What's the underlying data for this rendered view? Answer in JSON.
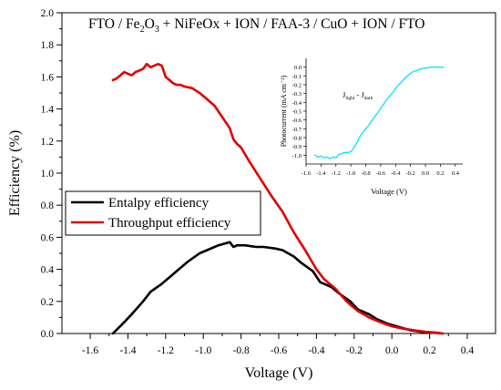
{
  "chart_data": [
    {
      "type": "line",
      "title_parts": [
        "FTO / Fe",
        "2",
        "O",
        "3",
        " + NiFeOx + ION / FAA-3 / CuO + ION / FTO"
      ],
      "xlabel": "Voltage (V)",
      "ylabel": "Efficiency (%)",
      "xlim": [
        -1.75,
        0.55
      ],
      "ylim": [
        0.0,
        2.0
      ],
      "x_ticks": [
        -1.6,
        -1.4,
        -1.2,
        -1.0,
        -0.8,
        -0.6,
        -0.4,
        -0.2,
        0.0,
        0.2,
        0.4
      ],
      "x_tick_labels": [
        "-1.6",
        "-1.4",
        "-1.2",
        "-1.0",
        "-0.8",
        "-0.6",
        "-0.4",
        "-0.2",
        "0.0",
        "0.2",
        "0.4"
      ],
      "y_ticks": [
        0.0,
        0.2,
        0.4,
        0.6,
        0.8,
        1.0,
        1.2,
        1.4,
        1.6,
        1.8,
        2.0
      ],
      "y_tick_labels": [
        "0.0",
        "0.2",
        "0.4",
        "0.6",
        "0.8",
        "1.0",
        "1.2",
        "1.4",
        "1.6",
        "1.8",
        "2.0"
      ],
      "legend_position": "middle-left",
      "grid": false,
      "series": [
        {
          "name": "Entalpy efficiency",
          "color": "#000000",
          "x": [
            -1.48,
            -1.42,
            -1.38,
            -1.32,
            -1.28,
            -1.22,
            -1.18,
            -1.12,
            -1.08,
            -1.02,
            -0.98,
            -0.92,
            -0.86,
            -0.84,
            -0.82,
            -0.78,
            -0.72,
            -0.68,
            -0.62,
            -0.58,
            -0.52,
            -0.48,
            -0.42,
            -0.38,
            -0.32,
            -0.28,
            -0.22,
            -0.18,
            -0.12,
            -0.08,
            -0.02,
            0.04,
            0.1,
            0.16,
            0.22,
            0.27
          ],
          "values": [
            0.0,
            0.07,
            0.12,
            0.2,
            0.26,
            0.31,
            0.35,
            0.41,
            0.45,
            0.5,
            0.52,
            0.55,
            0.57,
            0.54,
            0.55,
            0.55,
            0.54,
            0.54,
            0.53,
            0.52,
            0.48,
            0.44,
            0.39,
            0.32,
            0.29,
            0.25,
            0.2,
            0.15,
            0.12,
            0.09,
            0.06,
            0.04,
            0.02,
            0.01,
            0.005,
            0.0
          ]
        },
        {
          "name": "Throughput efficiency",
          "color": "#e00000",
          "x": [
            -1.48,
            -1.46,
            -1.44,
            -1.42,
            -1.4,
            -1.38,
            -1.36,
            -1.34,
            -1.32,
            -1.3,
            -1.28,
            -1.26,
            -1.24,
            -1.22,
            -1.2,
            -1.18,
            -1.16,
            -1.14,
            -1.12,
            -1.1,
            -1.06,
            -1.02,
            -0.98,
            -0.94,
            -0.9,
            -0.86,
            -0.84,
            -0.82,
            -0.8,
            -0.76,
            -0.7,
            -0.64,
            -0.58,
            -0.52,
            -0.46,
            -0.4,
            -0.36,
            -0.3,
            -0.24,
            -0.18,
            -0.12,
            -0.06,
            0.0,
            0.06,
            0.12,
            0.18,
            0.24,
            0.27
          ],
          "values": [
            1.58,
            1.59,
            1.61,
            1.63,
            1.62,
            1.61,
            1.63,
            1.64,
            1.65,
            1.68,
            1.66,
            1.67,
            1.68,
            1.67,
            1.6,
            1.58,
            1.56,
            1.55,
            1.55,
            1.54,
            1.53,
            1.5,
            1.46,
            1.42,
            1.35,
            1.28,
            1.21,
            1.18,
            1.16,
            1.08,
            0.97,
            0.86,
            0.76,
            0.63,
            0.52,
            0.4,
            0.34,
            0.28,
            0.2,
            0.14,
            0.1,
            0.07,
            0.045,
            0.03,
            0.02,
            0.01,
            0.005,
            0.0
          ]
        }
      ]
    },
    {
      "type": "line",
      "xlabel": "Voltage (V)",
      "ylabel": "Photocurrent (mA cm⁻²)",
      "annotation_parts": [
        "J",
        "light",
        " - J",
        "dark"
      ],
      "xlim": [
        -1.6,
        0.5
      ],
      "ylim": [
        -1.1,
        0.1
      ],
      "x_ticks": [
        -1.6,
        -1.4,
        -1.2,
        -1.0,
        -0.8,
        -0.6,
        -0.4,
        -0.2,
        0.0,
        0.2,
        0.4
      ],
      "x_tick_labels": [
        "-1.6",
        "-1.4",
        "-1.2",
        "-1.0",
        "-0.8",
        "-0.6",
        "-0.4",
        "-0.2",
        "0.0",
        "0.2",
        "0.4"
      ],
      "y_ticks": [
        0.0,
        -0.1,
        -0.2,
        -0.3,
        -0.4,
        -0.5,
        -0.6,
        -0.7,
        -0.8,
        -0.9,
        -1.0
      ],
      "y_tick_labels": [
        "0.0",
        "-0.1",
        "-0.2",
        "-0.3",
        "-0.4",
        "-0.5",
        "-0.6",
        "-0.7",
        "-0.8",
        "-0.9",
        "-1.0"
      ],
      "grid": false,
      "series": [
        {
          "color": "#00e5ff",
          "x": [
            -1.48,
            -1.44,
            -1.4,
            -1.36,
            -1.32,
            -1.28,
            -1.24,
            -1.2,
            -1.16,
            -1.12,
            -1.08,
            -1.04,
            -1.0,
            -0.96,
            -0.92,
            -0.88,
            -0.84,
            -0.8,
            -0.76,
            -0.72,
            -0.68,
            -0.64,
            -0.6,
            -0.56,
            -0.52,
            -0.48,
            -0.44,
            -0.4,
            -0.36,
            -0.32,
            -0.28,
            -0.24,
            -0.2,
            -0.16,
            -0.12,
            -0.08,
            -0.04,
            0.0,
            0.04,
            0.08,
            0.12,
            0.16,
            0.2,
            0.24
          ],
          "values": [
            -1.0,
            -1.02,
            -1.01,
            -1.03,
            -1.02,
            -1.04,
            -1.02,
            -1.03,
            -0.99,
            -0.98,
            -0.97,
            -0.97,
            -0.96,
            -0.92,
            -0.86,
            -0.79,
            -0.74,
            -0.7,
            -0.66,
            -0.61,
            -0.56,
            -0.52,
            -0.47,
            -0.42,
            -0.37,
            -0.33,
            -0.29,
            -0.24,
            -0.2,
            -0.17,
            -0.13,
            -0.1,
            -0.07,
            -0.05,
            -0.04,
            -0.025,
            -0.015,
            -0.01,
            -0.005,
            0.0,
            0.0,
            0.0,
            0.0,
            0.0
          ]
        }
      ]
    }
  ]
}
